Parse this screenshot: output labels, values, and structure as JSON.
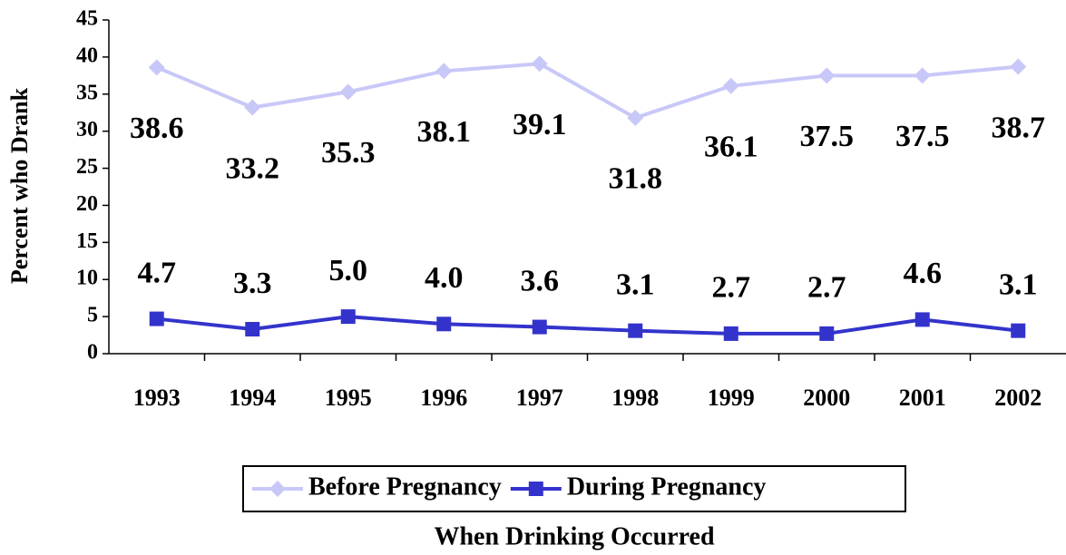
{
  "chart_data": {
    "type": "line",
    "x_label": "When Drinking Occurred",
    "y_label": "Percent who Drank",
    "categories": [
      "1993",
      "1994",
      "1995",
      "1996",
      "1997",
      "1998",
      "1999",
      "2000",
      "2001",
      "2002"
    ],
    "series": [
      {
        "name": "Before Pregnancy",
        "color": "#c8c8f8",
        "marker": "diamond",
        "values": [
          38.6,
          33.2,
          35.3,
          38.1,
          39.1,
          31.8,
          36.1,
          37.5,
          37.5,
          38.7
        ],
        "value_labels": [
          "38.6",
          "33.2",
          "35.3",
          "38.1",
          "39.1",
          "31.8",
          "36.1",
          "37.5",
          "37.5",
          "38.7"
        ]
      },
      {
        "name": "During Pregnancy",
        "color": "#3333cc",
        "marker": "square",
        "values": [
          4.7,
          3.3,
          5.0,
          4.0,
          3.6,
          3.1,
          2.7,
          2.7,
          4.6,
          3.1
        ],
        "value_labels": [
          "4.7",
          "3.3",
          "5.0",
          "4.0",
          "3.6",
          "3.1",
          "2.7",
          "2.7",
          "4.6",
          "3.1"
        ]
      }
    ],
    "ylim": [
      0,
      45
    ],
    "yticks": [
      0,
      5,
      10,
      15,
      20,
      25,
      30,
      35,
      40,
      45
    ],
    "legend": "bottom"
  }
}
